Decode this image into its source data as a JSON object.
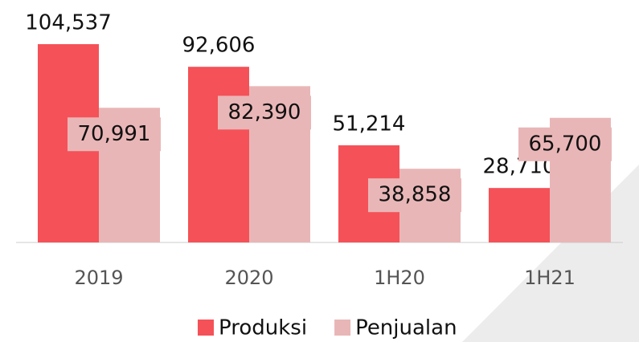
{
  "chart_data": {
    "type": "bar",
    "categories": [
      "2019",
      "2020",
      "1H20",
      "1H21"
    ],
    "series": [
      {
        "name": "Produksi",
        "color": "#f55158",
        "values": [
          104537,
          92606,
          51214,
          28710
        ],
        "value_labels": [
          "104,537",
          "92,606",
          "51,214",
          "28,710"
        ]
      },
      {
        "name": "Penjualan",
        "color": "#e9b6b7",
        "values": [
          70991,
          82390,
          38858,
          65700
        ],
        "value_labels": [
          "70,991",
          "82,390",
          "38,858",
          "65,700"
        ]
      }
    ]
  }
}
